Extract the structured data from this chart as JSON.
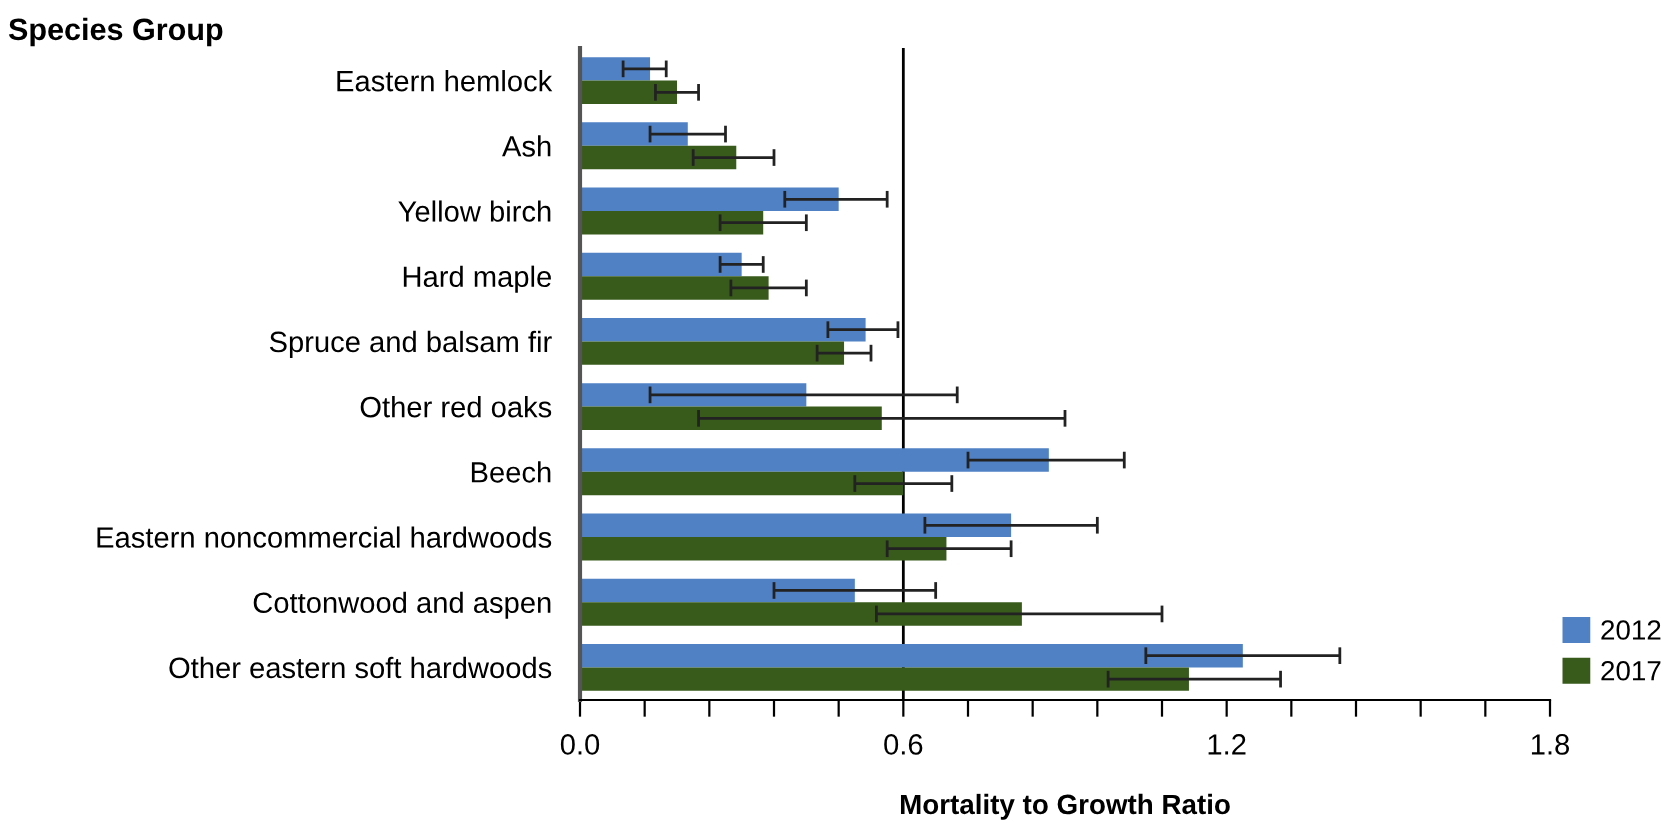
{
  "chart_data": {
    "type": "bar",
    "orientation": "horizontal",
    "xlabel": "Mortality to Growth Ratio",
    "ylabel": "Species Group",
    "categories": [
      "Eastern hemlock",
      "Ash",
      "Yellow birch",
      "Hard maple",
      "Spruce and balsam fir",
      "Other red oaks",
      "Beech",
      "Eastern noncommercial hardwoods",
      "Cottonwood and aspen",
      "Other eastern soft hardwoods"
    ],
    "series": [
      {
        "name": "2012",
        "color": "#4f81c4",
        "values": [
          0.13,
          0.2,
          0.48,
          0.3,
          0.53,
          0.42,
          0.87,
          0.8,
          0.51,
          1.23
        ],
        "errors": [
          [
            0.08,
            0.16
          ],
          [
            0.13,
            0.27
          ],
          [
            0.38,
            0.57
          ],
          [
            0.26,
            0.34
          ],
          [
            0.46,
            0.59
          ],
          [
            0.13,
            0.7
          ],
          [
            0.72,
            1.01
          ],
          [
            0.64,
            0.96
          ],
          [
            0.36,
            0.66
          ],
          [
            1.05,
            1.41
          ]
        ]
      },
      {
        "name": "2017",
        "color": "#385b1c",
        "values": [
          0.18,
          0.29,
          0.34,
          0.35,
          0.49,
          0.56,
          0.6,
          0.68,
          0.82,
          1.13
        ],
        "errors": [
          [
            0.14,
            0.22
          ],
          [
            0.21,
            0.36
          ],
          [
            0.26,
            0.42
          ],
          [
            0.28,
            0.42
          ],
          [
            0.44,
            0.54
          ],
          [
            0.22,
            0.9
          ],
          [
            0.51,
            0.69
          ],
          [
            0.57,
            0.8
          ],
          [
            0.55,
            1.08
          ],
          [
            0.98,
            1.3
          ]
        ]
      }
    ],
    "xlim": [
      0,
      1.8
    ],
    "xticks": [
      {
        "value": 0,
        "label": "0.0"
      },
      {
        "value": 0.12,
        "label": null
      },
      {
        "value": 0.24,
        "label": null
      },
      {
        "value": 0.36,
        "label": null
      },
      {
        "value": 0.48,
        "label": null
      },
      0.6,
      {
        "value": 0.72,
        "label": null
      },
      {
        "value": 0.84,
        "label": null
      },
      {
        "value": 0.96,
        "label": null
      },
      {
        "value": 1.08,
        "label": null
      },
      1.2,
      {
        "value": 1.32,
        "label": null
      },
      {
        "value": 1.44,
        "label": null
      },
      {
        "value": 1.56,
        "label": null
      },
      {
        "value": 1.68,
        "label": null
      },
      1.8
    ],
    "ref_lines": [
      {
        "axis": "x",
        "value": 0.6,
        "label": null,
        "color": "#000000"
      }
    ],
    "grid": false,
    "legend": "bottom right"
  }
}
